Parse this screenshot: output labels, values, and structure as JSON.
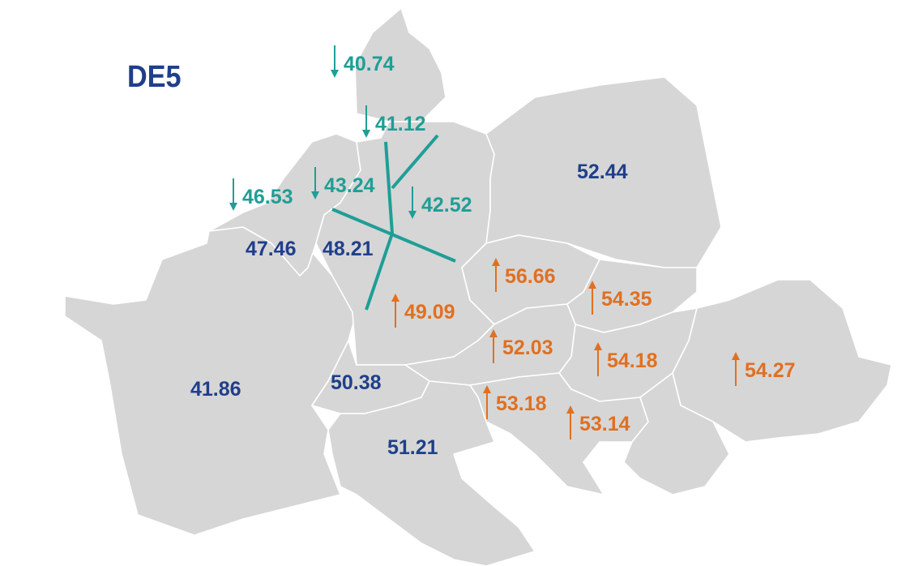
{
  "title": "DE5",
  "colors": {
    "land": "#d6d6d6",
    "border": "#ffffff",
    "neutral_text": "#1f3f8a",
    "decrease": "#1f9e96",
    "increase": "#e07020"
  },
  "regions": [
    {
      "id": "dk1",
      "value": "40.74",
      "trend": "down"
    },
    {
      "id": "dk2",
      "value": "41.12",
      "trend": "down"
    },
    {
      "id": "nl",
      "value": "43.24",
      "trend": "down"
    },
    {
      "id": "be",
      "value": "46.53",
      "trend": "down"
    },
    {
      "id": "de-ne",
      "value": "42.52",
      "trend": "down"
    },
    {
      "id": "pl",
      "value": "52.44",
      "trend": "none"
    },
    {
      "id": "fr-n",
      "value": "47.46",
      "trend": "none"
    },
    {
      "id": "de-w",
      "value": "48.21",
      "trend": "none"
    },
    {
      "id": "cz",
      "value": "56.66",
      "trend": "up"
    },
    {
      "id": "sk",
      "value": "54.35",
      "trend": "up"
    },
    {
      "id": "de-s",
      "value": "49.09",
      "trend": "up"
    },
    {
      "id": "at",
      "value": "52.03",
      "trend": "up"
    },
    {
      "id": "hu",
      "value": "54.18",
      "trend": "up"
    },
    {
      "id": "ro",
      "value": "54.27",
      "trend": "up"
    },
    {
      "id": "fr",
      "value": "41.86",
      "trend": "none"
    },
    {
      "id": "ch",
      "value": "50.38",
      "trend": "none"
    },
    {
      "id": "si",
      "value": "53.18",
      "trend": "up"
    },
    {
      "id": "hr",
      "value": "53.14",
      "trend": "up"
    },
    {
      "id": "it",
      "value": "51.21",
      "trend": "none"
    }
  ]
}
